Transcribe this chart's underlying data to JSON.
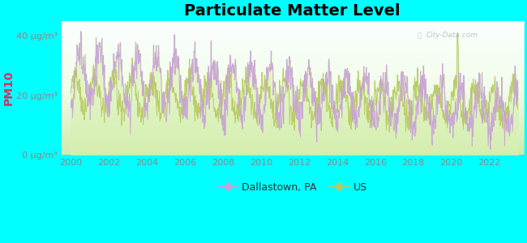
{
  "title": "Particulate Matter Level",
  "ylabel": "PM10",
  "background_color": "#00FFFF",
  "plot_bg_top": "#f8fef8",
  "plot_bg_bottom": "#d8f0c0",
  "line_color_dallastown": "#c8a0d8",
  "line_color_us": "#b8c860",
  "fill_color_top": "#e8f8d8",
  "fill_color_bottom": "#c8e8a8",
  "ylim": [
    0,
    45
  ],
  "yticks": [
    0,
    20,
    40
  ],
  "ytick_labels": [
    "0 μg/m³",
    "20 μg/m³",
    "40 μg/m³"
  ],
  "xstart": 1999.5,
  "xend": 2023.8,
  "xticks": [
    2000,
    2002,
    2004,
    2006,
    2008,
    2010,
    2012,
    2014,
    2016,
    2018,
    2020,
    2022
  ],
  "legend_dallastown": "Dallastown, PA",
  "legend_us": "US",
  "watermark": "City-Data.com",
  "ylabel_color": "#cc3366",
  "tick_color": "#888888",
  "title_fontsize": 14,
  "axis_label_fontsize": 8
}
